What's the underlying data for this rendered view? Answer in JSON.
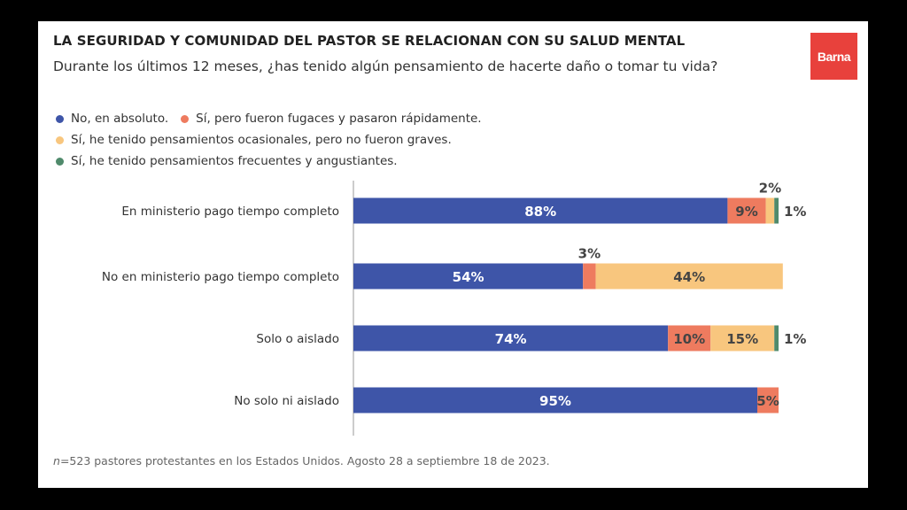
{
  "title": "LA SEGURIDAD Y COMUNIDAD DEL PASTOR SE RELACIONAN CON SU SALUD MENTAL",
  "subtitle": "Durante los últimos 12 meses, ¿has tenido algún pensamiento de hacerte daño o tomar tu vida?",
  "logo": "Barna",
  "footnote": {
    "n": "n",
    "text": "=523 pastores protestantes en los Estados Unidos. Agosto 28 a septiembre 18 de 2023."
  },
  "legend": [
    {
      "label": "No, en absoluto.",
      "color": "#3e55a8"
    },
    {
      "label": "Sí, pero fueron fugaces y pasaron rápidamente.",
      "color": "#ee7b5f"
    },
    {
      "label": "Sí, he tenido pensamientos ocasionales, pero no fueron graves.",
      "color": "#f8c67e"
    },
    {
      "label": "Sí, he tenido pensamientos frecuentes y angustiantes.",
      "color": "#4f8a6b"
    }
  ],
  "chart_data": {
    "type": "bar",
    "orientation": "horizontal",
    "stacked": true,
    "xlim": [
      0,
      100
    ],
    "categories": [
      "En ministerio pago tiempo completo",
      "No en ministerio pago tiempo completo",
      "Solo o aislado",
      "No solo ni aislado"
    ],
    "series": [
      {
        "name": "No, en absoluto.",
        "color": "#3e55a8",
        "values": [
          88,
          54,
          74,
          95
        ],
        "labels": [
          "88%",
          "54%",
          "74%",
          "95%"
        ]
      },
      {
        "name": "Sí, pero fueron fugaces y pasaron rápidamente.",
        "color": "#ee7b5f",
        "values": [
          9,
          3,
          10,
          5
        ],
        "labels": [
          "9%",
          "3%",
          "10%",
          "5%"
        ]
      },
      {
        "name": "Sí, he tenido pensamientos ocasionales, pero no fueron graves.",
        "color": "#f8c67e",
        "values": [
          2,
          44,
          15,
          0
        ],
        "labels": [
          "2%",
          "44%",
          "15%",
          ""
        ]
      },
      {
        "name": "Sí, he tenido pensamientos frecuentes y angustiantes.",
        "color": "#4f8a6b",
        "values": [
          1,
          0,
          1,
          0
        ],
        "labels": [
          "1%",
          "",
          "1%",
          ""
        ]
      }
    ]
  }
}
